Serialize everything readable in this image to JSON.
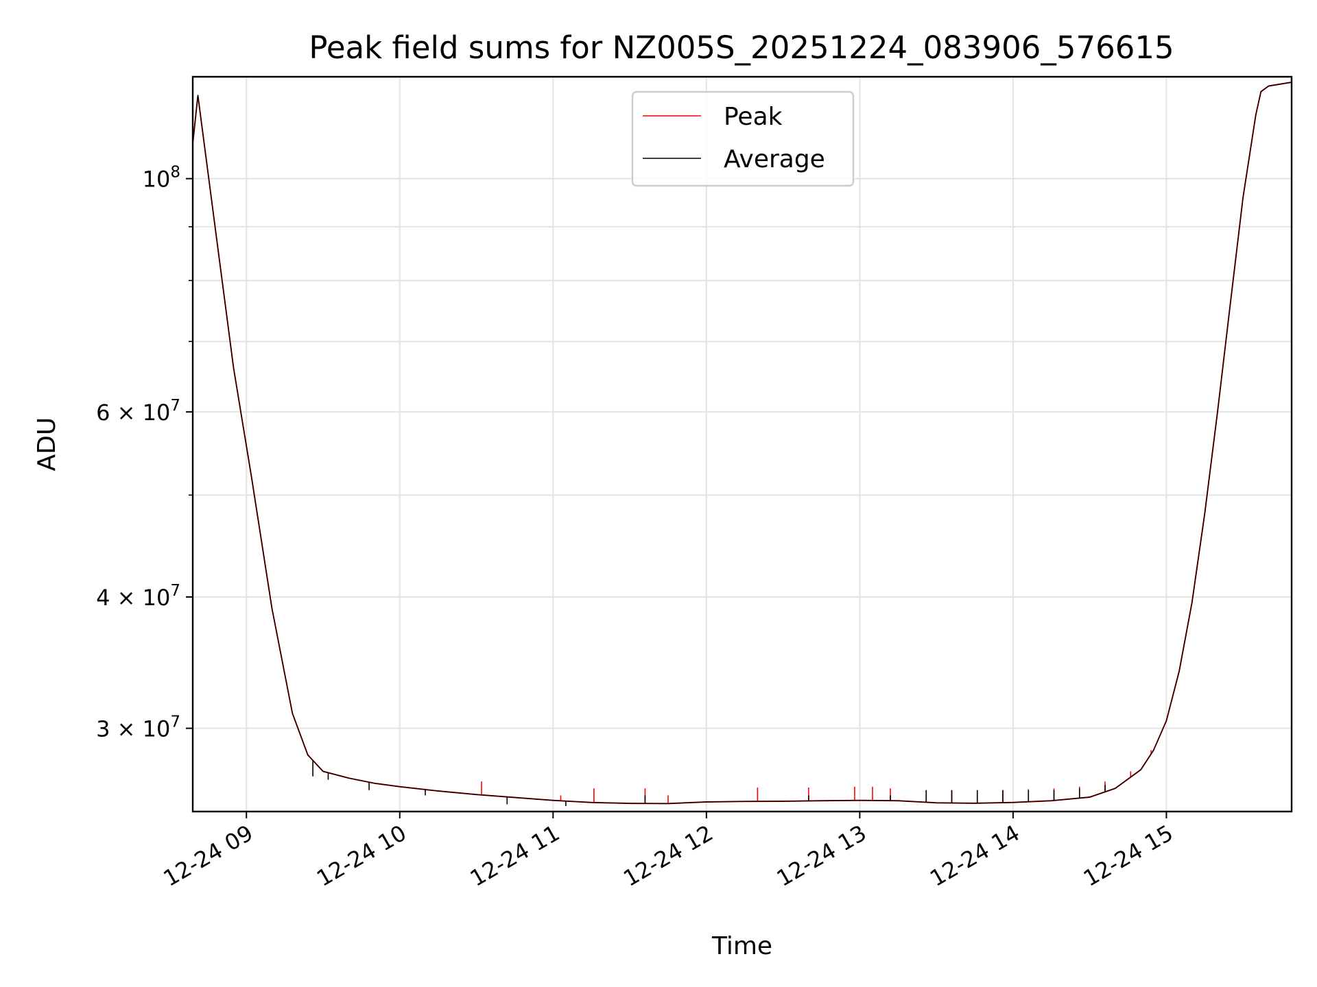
{
  "chart_data": {
    "type": "line",
    "title": "Peak field sums for NZ005S_20251224_083906_576615",
    "xlabel": "Time",
    "ylabel": "ADU",
    "y_scale": "log",
    "xlim": [
      "2025-12-24 08:39",
      "2025-12-24 15:49"
    ],
    "ylim": [
      25000000,
      125000000
    ],
    "x_ticks": [
      {
        "value": "2025-12-24 09:00",
        "label": "12-24 09"
      },
      {
        "value": "2025-12-24 10:00",
        "label": "12-24 10"
      },
      {
        "value": "2025-12-24 11:00",
        "label": "12-24 11"
      },
      {
        "value": "2025-12-24 12:00",
        "label": "12-24 12"
      },
      {
        "value": "2025-12-24 13:00",
        "label": "12-24 13"
      },
      {
        "value": "2025-12-24 14:00",
        "label": "12-24 14"
      },
      {
        "value": "2025-12-24 15:00",
        "label": "12-24 15"
      }
    ],
    "y_major_ticks": [
      {
        "value": 100000000,
        "base": "10",
        "exp": "8"
      },
      {
        "value": 60000000,
        "base": "6 × 10",
        "exp": "7"
      },
      {
        "value": 40000000,
        "base": "4 × 10",
        "exp": "7"
      },
      {
        "value": 30000000,
        "base": "3 × 10",
        "exp": "7"
      }
    ],
    "y_minor_ticks": [
      90000000,
      80000000,
      70000000,
      50000000
    ],
    "grid": true,
    "legend_position": "upper-center",
    "colors": {
      "peak": "#ff0000",
      "average": "#000000"
    },
    "series": [
      {
        "name": "Peak",
        "color": "#ff0000",
        "points": [
          [
            "2025-12-24 08:39",
            108000000
          ],
          [
            "2025-12-24 08:41",
            120000000
          ],
          [
            "2025-12-24 08:48",
            89000000
          ],
          [
            "2025-12-24 08:55",
            66000000
          ],
          [
            "2025-12-24 09:02",
            52000000
          ],
          [
            "2025-12-24 09:10",
            39000000
          ],
          [
            "2025-12-24 09:18",
            31000000
          ],
          [
            "2025-12-24 09:24",
            28300000
          ],
          [
            "2025-12-24 09:30",
            27300000
          ],
          [
            "2025-12-24 09:40",
            26900000
          ],
          [
            "2025-12-24 09:50",
            26600000
          ],
          [
            "2025-12-24 10:00",
            26400000
          ],
          [
            "2025-12-24 10:15",
            26150000
          ],
          [
            "2025-12-24 10:30",
            25950000
          ],
          [
            "2025-12-24 10:45",
            25780000
          ],
          [
            "2025-12-24 11:00",
            25620000
          ],
          [
            "2025-12-24 11:15",
            25500000
          ],
          [
            "2025-12-24 11:30",
            25450000
          ],
          [
            "2025-12-24 11:45",
            25440000
          ],
          [
            "2025-12-24 12:00",
            25530000
          ],
          [
            "2025-12-24 12:15",
            25560000
          ],
          [
            "2025-12-24 12:30",
            25570000
          ],
          [
            "2025-12-24 12:45",
            25600000
          ],
          [
            "2025-12-24 13:00",
            25620000
          ],
          [
            "2025-12-24 13:15",
            25600000
          ],
          [
            "2025-12-24 13:30",
            25480000
          ],
          [
            "2025-12-24 13:45",
            25460000
          ],
          [
            "2025-12-24 14:00",
            25500000
          ],
          [
            "2025-12-24 14:15",
            25600000
          ],
          [
            "2025-12-24 14:30",
            25800000
          ],
          [
            "2025-12-24 14:40",
            26300000
          ],
          [
            "2025-12-24 14:50",
            27400000
          ],
          [
            "2025-12-24 14:55",
            28600000
          ],
          [
            "2025-12-24 15:00",
            30500000
          ],
          [
            "2025-12-24 15:05",
            34000000
          ],
          [
            "2025-12-24 15:10",
            39500000
          ],
          [
            "2025-12-24 15:15",
            48000000
          ],
          [
            "2025-12-24 15:20",
            60000000
          ],
          [
            "2025-12-24 15:25",
            76000000
          ],
          [
            "2025-12-24 15:30",
            96000000
          ],
          [
            "2025-12-24 15:35",
            115000000
          ],
          [
            "2025-12-24 15:37",
            121000000
          ],
          [
            "2025-12-24 15:40",
            122500000
          ],
          [
            "2025-12-24 15:49",
            123500000
          ]
        ],
        "spikes": [
          [
            "2025-12-24 10:32",
            26700000
          ],
          [
            "2025-12-24 11:03",
            25900000
          ],
          [
            "2025-12-24 11:16",
            26300000
          ],
          [
            "2025-12-24 11:36",
            26300000
          ],
          [
            "2025-12-24 11:45",
            25900000
          ],
          [
            "2025-12-24 12:20",
            26350000
          ],
          [
            "2025-12-24 12:40",
            26350000
          ],
          [
            "2025-12-24 12:58",
            26400000
          ],
          [
            "2025-12-24 13:05",
            26400000
          ],
          [
            "2025-12-24 13:12",
            26300000
          ],
          [
            "2025-12-24 13:26",
            26200000
          ],
          [
            "2025-12-24 13:36",
            26200000
          ],
          [
            "2025-12-24 13:46",
            26200000
          ],
          [
            "2025-12-24 13:56",
            26200000
          ],
          [
            "2025-12-24 14:06",
            26250000
          ],
          [
            "2025-12-24 14:16",
            26300000
          ],
          [
            "2025-12-24 14:26",
            26400000
          ],
          [
            "2025-12-24 14:36",
            26700000
          ],
          [
            "2025-12-24 14:46",
            27300000
          ],
          [
            "2025-12-24 14:54",
            28600000
          ]
        ]
      },
      {
        "name": "Average",
        "color": "#000000",
        "points": [
          [
            "2025-12-24 08:39",
            108000000
          ],
          [
            "2025-12-24 08:41",
            120000000
          ],
          [
            "2025-12-24 08:48",
            89000000
          ],
          [
            "2025-12-24 08:55",
            66000000
          ],
          [
            "2025-12-24 09:02",
            52000000
          ],
          [
            "2025-12-24 09:10",
            39000000
          ],
          [
            "2025-12-24 09:18",
            31000000
          ],
          [
            "2025-12-24 09:24",
            28300000
          ],
          [
            "2025-12-24 09:30",
            27300000
          ],
          [
            "2025-12-24 09:40",
            26900000
          ],
          [
            "2025-12-24 09:50",
            26600000
          ],
          [
            "2025-12-24 10:00",
            26400000
          ],
          [
            "2025-12-24 10:15",
            26150000
          ],
          [
            "2025-12-24 10:30",
            25950000
          ],
          [
            "2025-12-24 10:45",
            25780000
          ],
          [
            "2025-12-24 11:00",
            25620000
          ],
          [
            "2025-12-24 11:15",
            25500000
          ],
          [
            "2025-12-24 11:30",
            25450000
          ],
          [
            "2025-12-24 11:45",
            25440000
          ],
          [
            "2025-12-24 12:00",
            25530000
          ],
          [
            "2025-12-24 12:15",
            25560000
          ],
          [
            "2025-12-24 12:30",
            25570000
          ],
          [
            "2025-12-24 12:45",
            25600000
          ],
          [
            "2025-12-24 13:00",
            25620000
          ],
          [
            "2025-12-24 13:15",
            25600000
          ],
          [
            "2025-12-24 13:30",
            25480000
          ],
          [
            "2025-12-24 13:45",
            25460000
          ],
          [
            "2025-12-24 14:00",
            25500000
          ],
          [
            "2025-12-24 14:15",
            25600000
          ],
          [
            "2025-12-24 14:30",
            25800000
          ],
          [
            "2025-12-24 14:40",
            26300000
          ],
          [
            "2025-12-24 14:50",
            27400000
          ],
          [
            "2025-12-24 14:55",
            28600000
          ],
          [
            "2025-12-24 15:00",
            30500000
          ],
          [
            "2025-12-24 15:05",
            34000000
          ],
          [
            "2025-12-24 15:10",
            39500000
          ],
          [
            "2025-12-24 15:15",
            48000000
          ],
          [
            "2025-12-24 15:20",
            60000000
          ],
          [
            "2025-12-24 15:25",
            76000000
          ],
          [
            "2025-12-24 15:30",
            96000000
          ],
          [
            "2025-12-24 15:35",
            115000000
          ],
          [
            "2025-12-24 15:37",
            121000000
          ],
          [
            "2025-12-24 15:40",
            122500000
          ],
          [
            "2025-12-24 15:49",
            123500000
          ]
        ],
        "spikes": [
          [
            "2025-12-24 09:26",
            27000000
          ],
          [
            "2025-12-24 09:32",
            26800000
          ],
          [
            "2025-12-24 09:48",
            26200000
          ],
          [
            "2025-12-24 10:10",
            25900000
          ],
          [
            "2025-12-24 10:42",
            25400000
          ],
          [
            "2025-12-24 11:05",
            25300000
          ],
          [
            "2025-12-24 11:36",
            25900000
          ],
          [
            "2025-12-24 12:40",
            25900000
          ],
          [
            "2025-12-24 13:12",
            25900000
          ],
          [
            "2025-12-24 13:26",
            26200000
          ],
          [
            "2025-12-24 13:36",
            26200000
          ],
          [
            "2025-12-24 13:46",
            26200000
          ],
          [
            "2025-12-24 13:56",
            26200000
          ],
          [
            "2025-12-24 14:06",
            26200000
          ],
          [
            "2025-12-24 14:16",
            26200000
          ],
          [
            "2025-12-24 14:26",
            26300000
          ],
          [
            "2025-12-24 14:36",
            26500000
          ],
          [
            "2025-12-24 14:46",
            27000000
          ]
        ]
      }
    ]
  }
}
